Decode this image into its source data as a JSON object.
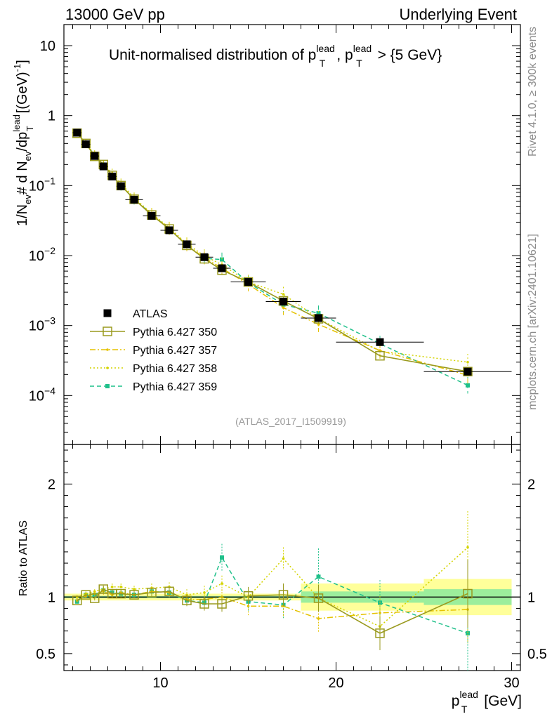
{
  "header": {
    "left": "13000 GeV pp",
    "right": "Underlying Event"
  },
  "side_labels": {
    "rivet": "Rivet 4.1.0, ≥ 300k events",
    "mcplots": "mcplots.cern.ch [arXiv:2401.10621]"
  },
  "colors": {
    "atlas": "#000000",
    "p350": "#9a9a1e",
    "p357": "#e5c200",
    "p358": "#d4d400",
    "p359": "#1fc08a",
    "band_inner": "#9cee9c",
    "band_outer": "#ffff9a"
  },
  "chart_data": [
    {
      "type": "line",
      "title_parts": {
        "text": "Unit-normalised distribution of p",
        "sup1": "lead",
        "sub1": "T",
        "sep": ", p",
        "sup2": "lead",
        "sub2": "T",
        "tail": " > {5 GeV}"
      },
      "ylabel": "1/N_ev # d N_ev/dp_T^lead [(GeV)^-1]",
      "ylabel_parts": {
        "a": "1/N",
        "b": "ev",
        "c": "# d N",
        "d": "ev",
        "e": "/dp",
        "f": "lead",
        "g": "T",
        "h": "[(GeV)",
        "i": "-1",
        "j": "]"
      },
      "yscale": "log",
      "ylim": [
        2e-05,
        20
      ],
      "xlim": [
        4.5,
        30.5
      ],
      "y_ticks": [
        {
          "value": 10,
          "mant": "10",
          "exp": ""
        },
        {
          "value": 1,
          "mant": "1",
          "exp": ""
        },
        {
          "value": 0.1,
          "mant": "10",
          "exp": "−1"
        },
        {
          "value": 0.01,
          "mant": "10",
          "exp": "−2"
        },
        {
          "value": 0.001,
          "mant": "10",
          "exp": "−3"
        },
        {
          "value": 0.0001,
          "mant": "10",
          "exp": "−4"
        }
      ],
      "annotation": "(ATLAS_2017_I1509919)",
      "legend_position": "middle-left",
      "legend": [
        {
          "key": "atlas",
          "label": "ATLAS"
        },
        {
          "key": "p350",
          "label": "Pythia 6.427 350"
        },
        {
          "key": "p357",
          "label": "Pythia 6.427 357"
        },
        {
          "key": "p358",
          "label": "Pythia 6.427 358"
        },
        {
          "key": "p359",
          "label": "Pythia 6.427 359"
        }
      ],
      "x": [
        5.25,
        5.75,
        6.25,
        6.75,
        7.25,
        7.75,
        8.5,
        9.5,
        10.5,
        11.5,
        12.5,
        13.5,
        15.0,
        17.0,
        19.0,
        22.5,
        27.5
      ],
      "x_err": [
        0.25,
        0.25,
        0.25,
        0.25,
        0.25,
        0.25,
        0.5,
        0.5,
        0.5,
        0.5,
        0.5,
        0.5,
        1.0,
        1.0,
        1.0,
        2.5,
        2.5
      ],
      "series": [
        {
          "key": "atlas",
          "name": "ATLAS",
          "values": [
            0.57,
            0.39,
            0.265,
            0.188,
            0.135,
            0.098,
            0.063,
            0.037,
            0.023,
            0.0145,
            0.0095,
            0.0066,
            0.0042,
            0.0022,
            0.00128,
            0.00058,
            0.00022
          ]
        },
        {
          "key": "p350",
          "name": "Pythia 6.427 350",
          "values": [
            0.56,
            0.4,
            0.262,
            0.2,
            0.14,
            0.1,
            0.064,
            0.038,
            0.024,
            0.014,
            0.009,
            0.0062,
            0.0042,
            0.00225,
            0.00125,
            0.00037,
            0.00022
          ]
        },
        {
          "key": "p357",
          "name": "Pythia 6.427 357",
          "values": [
            0.55,
            0.4,
            0.27,
            0.2,
            0.14,
            0.102,
            0.064,
            0.039,
            0.024,
            0.0142,
            0.0093,
            0.0066,
            0.0039,
            0.0018,
            0.00104,
            0.00044,
            0.000195
          ]
        },
        {
          "key": "p358",
          "name": "Pythia 6.427 358",
          "values": [
            0.57,
            0.4,
            0.28,
            0.2,
            0.15,
            0.107,
            0.067,
            0.04,
            0.025,
            0.0148,
            0.0099,
            0.0074,
            0.0042,
            0.0028,
            0.00126,
            0.00043,
            0.0003
          ]
        },
        {
          "key": "p359",
          "name": "Pythia 6.427 359",
          "values": [
            0.55,
            0.4,
            0.27,
            0.2,
            0.14,
            0.1,
            0.064,
            0.039,
            0.024,
            0.014,
            0.0091,
            0.0088,
            0.0041,
            0.002,
            0.0015,
            0.00055,
            0.00014
          ]
        }
      ]
    },
    {
      "type": "line",
      "ylabel": "Ratio to ATLAS",
      "ylim": [
        0.35,
        2.35
      ],
      "xlim": [
        4.5,
        30.5
      ],
      "y_ticks": [
        {
          "value": 0.5,
          "label": "0.5"
        },
        {
          "value": 1,
          "label": "1"
        },
        {
          "value": 2,
          "label": "2"
        }
      ],
      "x_ticks": [
        {
          "value": 10,
          "label": "10"
        },
        {
          "value": 20,
          "label": "20"
        },
        {
          "value": 30,
          "label": "30"
        }
      ],
      "xlabel_parts": {
        "base": "p",
        "sup": "lead",
        "sub": "T",
        "unit": " [GeV]"
      },
      "bands": [
        {
          "x0": 4.5,
          "x1": 18.0,
          "inner": 0.01,
          "outer": 0.03
        },
        {
          "x0": 18.0,
          "x1": 25.0,
          "inner": 0.05,
          "outer": 0.12
        },
        {
          "x0": 25.0,
          "x1": 30.0,
          "inner": 0.07,
          "outer": 0.16
        }
      ],
      "series": [
        {
          "key": "p350",
          "values": [
            0.97,
            1.02,
            0.99,
            1.07,
            1.03,
            1.03,
            1.02,
            1.04,
            1.05,
            0.97,
            0.94,
            0.94,
            1.01,
            1.02,
            0.99,
            0.68,
            1.03
          ],
          "errors": [
            0.02,
            0.02,
            0.02,
            0.03,
            0.03,
            0.03,
            0.03,
            0.04,
            0.04,
            0.05,
            0.06,
            0.07,
            0.08,
            0.1,
            0.12,
            0.15,
            0.3
          ]
        },
        {
          "key": "p357",
          "values": [
            0.97,
            1.01,
            1.03,
            1.05,
            1.02,
            1.04,
            1.02,
            1.05,
            1.04,
            0.98,
            0.98,
            1.0,
            0.92,
            0.92,
            0.81,
            0.86,
            0.89
          ],
          "errors": [
            0.02,
            0.02,
            0.02,
            0.03,
            0.03,
            0.03,
            0.03,
            0.04,
            0.04,
            0.05,
            0.06,
            0.07,
            0.08,
            0.1,
            0.12,
            0.15,
            0.3
          ]
        },
        {
          "key": "p358",
          "values": [
            1.0,
            1.03,
            1.05,
            1.07,
            1.09,
            1.09,
            1.07,
            1.08,
            1.09,
            1.02,
            1.04,
            1.12,
            1.0,
            1.34,
            0.99,
            0.74,
            1.44
          ],
          "errors": [
            0.02,
            0.02,
            0.02,
            0.03,
            0.03,
            0.03,
            0.03,
            0.04,
            0.04,
            0.05,
            0.06,
            0.07,
            0.08,
            0.1,
            0.12,
            0.15,
            0.32
          ]
        },
        {
          "key": "p359",
          "values": [
            0.96,
            1.02,
            1.02,
            1.06,
            1.04,
            1.03,
            1.02,
            1.05,
            1.04,
            0.97,
            0.95,
            1.35,
            0.96,
            0.93,
            1.18,
            0.95,
            0.68
          ],
          "errors": [
            0.02,
            0.02,
            0.02,
            0.03,
            0.03,
            0.03,
            0.03,
            0.04,
            0.04,
            0.05,
            0.06,
            0.12,
            0.08,
            0.12,
            0.25,
            0.2,
            0.4
          ]
        }
      ]
    }
  ]
}
